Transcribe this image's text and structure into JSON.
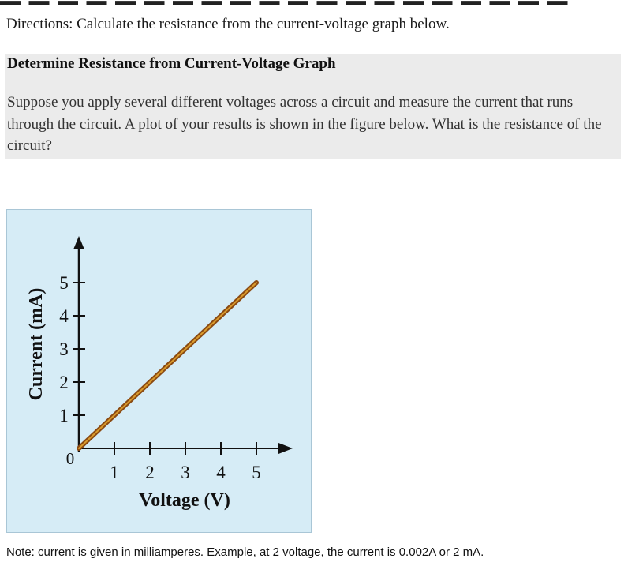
{
  "directions": "Directions: Calculate the resistance from the current-voltage graph below.",
  "panel": {
    "title": "Determine Resistance from Current-Voltage Graph",
    "body": "Suppose you apply several different voltages across a circuit and measure the current that runs through the circuit. A plot of your results is shown in the figure below. What is the resistance of the circuit?"
  },
  "note": "Note: current is given in milliamperes. Example, at 2 voltage, the current is 0.002A or 2 mA.",
  "chart_data": {
    "type": "line",
    "xlabel": "Voltage (V)",
    "ylabel": "Current (mA)",
    "origin_label": "0",
    "x_ticks": [
      "1",
      "2",
      "3",
      "4",
      "5"
    ],
    "y_ticks": [
      "1",
      "2",
      "3",
      "4",
      "5"
    ],
    "xlim": [
      0,
      5
    ],
    "ylim": [
      0,
      5
    ],
    "grid": false,
    "series": [
      {
        "x": [
          0,
          5
        ],
        "y": [
          0,
          5
        ],
        "color": "#8a4a12"
      }
    ],
    "colors": {
      "background": "#d6ecf6",
      "axis": "#111111",
      "line_outer": "#8a4a12",
      "line_inner": "#d99a2b"
    }
  }
}
